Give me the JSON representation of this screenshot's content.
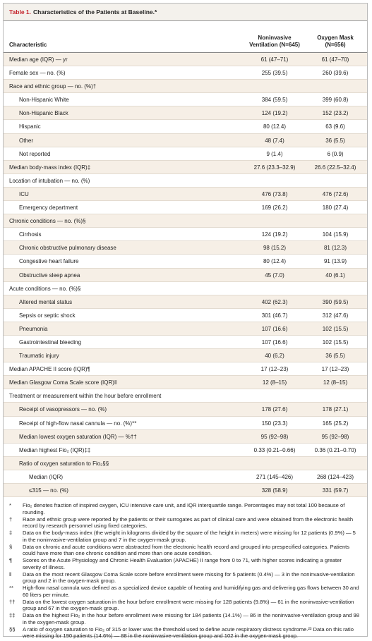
{
  "header": {
    "label": "Table 1.",
    "title": "Characteristics of the Patients at Baseline.*"
  },
  "table": {
    "columns": [
      "Characteristic",
      "Noninvasive Ventilation (N=645)",
      "Oxygen Mask (N=656)"
    ],
    "rows": [
      {
        "cells": [
          "Median age (IQR) — yr",
          "61 (47–71)",
          "61 (47–70)"
        ]
      },
      {
        "cells": [
          "Female sex — no. (%)",
          "255 (39.5)",
          "260 (39.6)"
        ]
      },
      {
        "label": "Race and ethnic group — no. (%)†",
        "rows": [
          {
            "cells": [
              "Non-Hispanic White",
              "384 (59.5)",
              "399 (60.8)"
            ]
          },
          {
            "cells": [
              "Non-Hispanic Black",
              "124 (19.2)",
              "152 (23.2)"
            ]
          },
          {
            "cells": [
              "Hispanic",
              "80 (12.4)",
              "63 (9.6)"
            ]
          },
          {
            "cells": [
              "Other",
              "48 (7.4)",
              "36 (5.5)"
            ]
          },
          {
            "cells": [
              "Not reported",
              "9 (1.4)",
              "6 (0.9)"
            ]
          }
        ]
      },
      {
        "cells": [
          "Median body-mass index (IQR)‡",
          "27.6 (23.3–32.9)",
          "26.6 (22.5–32.4)"
        ]
      },
      {
        "label": "Location of intubation — no. (%)",
        "rows": [
          {
            "cells": [
              "ICU",
              "476 (73.8)",
              "476 (72.6)"
            ]
          },
          {
            "cells": [
              "Emergency department",
              "169 (26.2)",
              "180 (27.4)"
            ]
          }
        ]
      },
      {
        "label": "Chronic conditions — no. (%)§",
        "rows": [
          {
            "cells": [
              "Cirrhosis",
              "124 (19.2)",
              "104 (15.9)"
            ]
          },
          {
            "cells": [
              "Chronic obstructive pulmonary disease",
              "98 (15.2)",
              "81 (12.3)"
            ]
          },
          {
            "cells": [
              "Congestive heart failure",
              "80 (12.4)",
              "91 (13.9)"
            ]
          },
          {
            "cells": [
              "Obstructive sleep apnea",
              "45 (7.0)",
              "40 (6.1)"
            ]
          }
        ]
      },
      {
        "label": "Acute conditions — no. (%)§",
        "rows": [
          {
            "cells": [
              "Altered mental status",
              "402 (62.3)",
              "390 (59.5)"
            ]
          },
          {
            "cells": [
              "Sepsis or septic shock",
              "301 (46.7)",
              "312 (47.6)"
            ]
          },
          {
            "cells": [
              "Pneumonia",
              "107 (16.6)",
              "102 (15.5)"
            ]
          },
          {
            "cells": [
              "Gastrointestinal bleeding",
              "107 (16.6)",
              "102 (15.5)"
            ]
          },
          {
            "cells": [
              "Traumatic injury",
              "40 (6.2)",
              "36 (5.5)"
            ]
          }
        ]
      },
      {
        "cells": [
          "Median APACHE II score (IQR)¶",
          "17 (12–23)",
          "17 (12–23)"
        ]
      },
      {
        "cells": [
          "Median Glasgow Coma Scale score (IQR)‖",
          "12 (8–15)",
          "12 (8–15)"
        ]
      },
      {
        "label": "Treatment or measurement within the hour before enrollment",
        "rows": [
          {
            "cells": [
              "Receipt of vasopressors — no. (%)",
              "178 (27.6)",
              "178 (27.1)"
            ]
          },
          {
            "cells": [
              "Receipt of high-flow nasal cannula — no. (%)**",
              "150 (23.3)",
              "165 (25.2)"
            ]
          },
          {
            "cells": [
              "Median lowest oxygen saturation (IQR) — %††",
              "95 (92–98)",
              "95 (92–98)"
            ]
          },
          {
            "cells": [
              "Median highest Fio₂ (IQR)‡‡",
              "0.33 (0.21–0.66)",
              "0.36 (0.21–0.70)"
            ]
          },
          {
            "label": "Ratio of oxygen saturation to Fio₂§§",
            "rows": [
              {
                "cells": [
                  "Median (IQR)",
                  "271 (145–426)",
                  "268 (124–423)"
                ]
              },
              {
                "cells": [
                  "≤315 — no. (%)",
                  "328 (58.9)",
                  "331 (59.7)"
                ]
              }
            ]
          }
        ]
      }
    ]
  },
  "footnotes": [
    {
      "symbol": "*",
      "text": "Fio₂ denotes fraction of inspired oxygen, ICU intensive care unit, and IQR interquartile range. Percentages may not total 100 because of rounding."
    },
    {
      "symbol": "†",
      "text": "Race and ethnic group were reported by the patients or their surrogates as part of clinical care and were obtained from the electronic health record by research personnel using fixed categories."
    },
    {
      "symbol": "‡",
      "text": "Data on the body-mass index (the weight in kilograms divided by the square of the height in meters) were missing for 12 patients (0.9%) — 5 in the noninvasive-ventilation group and 7 in the oxygen-mask group."
    },
    {
      "symbol": "§",
      "text": "Data on chronic and acute conditions were abstracted from the electronic health record and grouped into prespecified categories. Patients could have more than one chronic condition and more than one acute condition."
    },
    {
      "symbol": "¶",
      "text": "Scores on the Acute Physiology and Chronic Health Evaluation (APACHE) II range from 0 to 71, with higher scores indicating a greater severity of illness."
    },
    {
      "symbol": "‖",
      "text": "Data on the most recent Glasgow Coma Scale score before enrollment were missing for 5 patients (0.4%) — 3 in the noninvasive-ventilation group and 2 in the oxygen-mask group."
    },
    {
      "symbol": "**",
      "text": "High-flow nasal cannula was defined as a specialized device capable of heating and humidifying gas and delivering gas flows between 30 and 60 liters per minute."
    },
    {
      "symbol": "††",
      "text": "Data on the lowest oxygen saturation in the hour before enrollment were missing for 128 patients (9.8%) — 61 in the noninvasive-ventilation group and 67 in the oxygen-mask group."
    },
    {
      "symbol": "‡‡",
      "text": "Data on the highest Fio₂ in the hour before enrollment were missing for 184 patients (14.1%) — 86 in the noninvasive-ventilation group and 98 in the oxygen-mask group."
    },
    {
      "symbol": "§§",
      "text": "A ratio of oxygen saturation to Fio₂ of 315 or lower was the threshold used to define acute respiratory distress syndrome.²³ Data on this ratio were missing for 190 patients (14.6%) — 88 in the noninvasive-ventilation group and 102 in the oxygen-mask group."
    }
  ]
}
